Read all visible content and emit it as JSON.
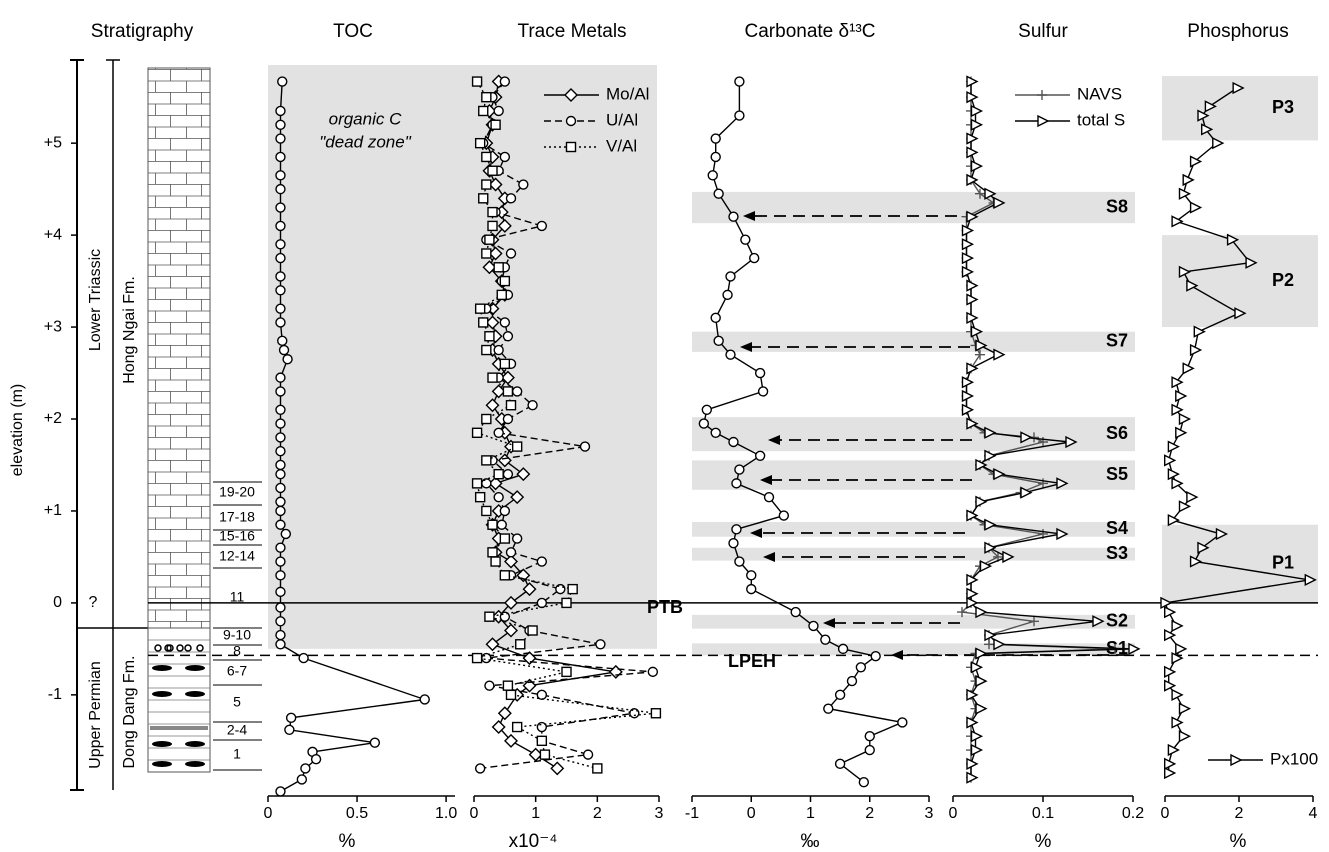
{
  "stratigraphy": {
    "title": "Stratigraphy",
    "axis_label": "elevation (m)",
    "ylim": [
      -2.1,
      5.85
    ],
    "yticks": [
      {
        "value": 5,
        "label": "+5"
      },
      {
        "value": 4,
        "label": "+4"
      },
      {
        "value": 3,
        "label": "+3"
      },
      {
        "value": 2,
        "label": "+2"
      },
      {
        "value": 1,
        "label": "+1"
      },
      0,
      -1
    ],
    "uncertain_label": "?",
    "systems": [
      "Lower Triassic",
      "Upper Permian"
    ],
    "formations": [
      "Hong Ngai Fm.",
      "Dong Dang Fm."
    ],
    "beds": [
      "19-20",
      "17-18",
      "15-16",
      "12-14",
      "11",
      "9-10",
      "8",
      "6-7",
      "5",
      "2-4",
      "1"
    ]
  },
  "boundaries": [
    {
      "label": "PTB",
      "elevation": 0
    },
    {
      "label": "LPEH",
      "elevation": -0.57
    }
  ],
  "chart_data": [
    {
      "type": "line",
      "title": "TOC",
      "unit": "%",
      "xlim": [
        0,
        1.05
      ],
      "xticks": [
        0,
        0.5,
        {
          "value": 1,
          "label": "1.0"
        }
      ],
      "annotation": [
        "organic C",
        "\"dead zone\""
      ],
      "bands": [
        {
          "from": -0.5,
          "to": 5.85
        }
      ],
      "elevation": [
        5.67,
        5.35,
        5.2,
        5.05,
        4.85,
        4.65,
        4.5,
        4.3,
        4.1,
        3.9,
        3.75,
        3.55,
        3.4,
        3.2,
        3.05,
        2.85,
        2.75,
        2.65,
        2.45,
        2.3,
        2.1,
        1.95,
        1.8,
        1.65,
        1.5,
        1.4,
        1.25,
        1.1,
        1.0,
        0.85,
        0.75,
        0.6,
        0.45,
        0.3,
        0.12,
        -0.05,
        -0.2,
        -0.35,
        -0.45,
        -0.6,
        -1.05,
        -1.25,
        -1.38,
        -1.52,
        -1.62,
        -1.7,
        -1.8,
        -1.92,
        -2.05
      ],
      "series": [
        {
          "color": "#000000",
          "marker": "circle",
          "dash": "solid",
          "values": [
            0.08,
            0.07,
            0.07,
            0.07,
            0.07,
            0.07,
            0.07,
            0.07,
            0.07,
            0.07,
            0.07,
            0.07,
            0.07,
            0.07,
            0.07,
            0.08,
            0.09,
            0.11,
            0.07,
            0.07,
            0.07,
            0.07,
            0.07,
            0.07,
            0.07,
            0.07,
            0.07,
            0.07,
            0.07,
            0.07,
            0.1,
            0.07,
            0.07,
            0.07,
            0.07,
            0.07,
            0.07,
            0.07,
            0.07,
            0.2,
            0.88,
            0.13,
            0.12,
            0.6,
            0.25,
            0.27,
            0.21,
            0.19,
            0.07
          ]
        }
      ]
    },
    {
      "type": "line",
      "title": "Trace Metals",
      "unit": "x10⁻⁴",
      "xlim": [
        0,
        3
      ],
      "xticks": [
        0,
        1,
        2,
        3
      ],
      "legend": "top-right",
      "elevation": [
        5.67,
        5.5,
        5.35,
        5.2,
        5.0,
        4.85,
        4.7,
        4.55,
        4.4,
        4.25,
        4.1,
        3.95,
        3.8,
        3.65,
        3.5,
        3.35,
        3.2,
        3.05,
        2.9,
        2.75,
        2.6,
        2.45,
        2.3,
        2.15,
        2.0,
        1.85,
        1.7,
        1.55,
        1.4,
        1.3,
        1.15,
        1.0,
        0.85,
        0.7,
        0.55,
        0.45,
        0.3,
        0.15,
        0.0,
        -0.15,
        -0.3,
        -0.45,
        -0.6,
        -0.75,
        -0.9,
        -1.0,
        -1.2,
        -1.35,
        -1.5,
        -1.65,
        -1.8
      ],
      "series": [
        {
          "name": "Mo/Al",
          "color": "#000000",
          "marker": "diamond",
          "dash": "solid",
          "values": [
            0.4,
            0.35,
            0.25,
            0.3,
            0.2,
            0.3,
            0.25,
            0.35,
            0.5,
            0.45,
            0.5,
            0.3,
            0.35,
            0.25,
            0.45,
            0.5,
            0.3,
            0.3,
            0.35,
            0.3,
            0.4,
            0.55,
            0.4,
            0.3,
            0.45,
            0.5,
            0.6,
            0.5,
            0.8,
            0.35,
            0.7,
            0.4,
            0.3,
            0.4,
            0.35,
            0.6,
            0.8,
            0.9,
            0.6,
            0.4,
            0.6,
            0.3,
            0.9,
            2.3,
            0.9,
            0.7,
            0.5,
            0.4,
            0.6,
            1.0,
            1.35
          ]
        },
        {
          "name": "U/Al",
          "color": "#000000",
          "marker": "circle",
          "dash": "dashed",
          "values": [
            0.5,
            0.3,
            0.4,
            0.3,
            0.15,
            0.5,
            0.4,
            0.8,
            0.6,
            0.35,
            1.1,
            0.2,
            0.6,
            0.5,
            0.45,
            0.55,
            0.2,
            0.5,
            0.55,
            0.4,
            0.6,
            0.4,
            0.7,
            0.95,
            0.55,
            0.4,
            1.8,
            0.3,
            0.55,
            0.2,
            0.4,
            0.5,
            0.45,
            0.7,
            0.6,
            1.1,
            0.6,
            1.4,
            1.1,
            0.5,
            0.9,
            2.05,
            0.2,
            2.9,
            0.25,
            1.1,
            2.6,
            1.1,
            1.1,
            1.85,
            0.1
          ]
        },
        {
          "name": "V/Al",
          "color": "#000000",
          "marker": "square",
          "dash": "dotted",
          "values": [
            0.05,
            0.2,
            0.15,
            0.35,
            0.1,
            0.2,
            0.3,
            0.2,
            0.15,
            0.3,
            0.3,
            0.25,
            0.2,
            0.4,
            0.5,
            0.45,
            0.1,
            0.15,
            0.25,
            0.2,
            0.5,
            0.3,
            0.55,
            0.6,
            0.2,
            0.05,
            0.7,
            0.2,
            0.4,
            0.05,
            0.1,
            0.2,
            0.3,
            0.5,
            0.3,
            0.35,
            0.5,
            1.6,
            1.5,
            0.25,
            0.95,
            0.75,
            0.05,
            1.5,
            0.55,
            0.6,
            2.95,
            0.7,
            1.1,
            1.15,
            2.0
          ]
        }
      ]
    },
    {
      "type": "line",
      "title": "Carbonate δ¹³C",
      "unit": "‰",
      "xlim": [
        -1,
        3
      ],
      "xticks": [
        -1,
        0,
        1,
        2,
        3
      ],
      "elevation": [
        5.67,
        5.3,
        5.05,
        4.85,
        4.65,
        4.45,
        4.2,
        3.95,
        3.75,
        3.55,
        3.35,
        3.1,
        2.85,
        2.7,
        2.5,
        2.3,
        2.1,
        1.95,
        1.85,
        1.75,
        1.6,
        1.45,
        1.3,
        1.15,
        0.95,
        0.8,
        0.65,
        0.45,
        0.3,
        0.15,
        -0.1,
        -0.25,
        -0.4,
        -0.5,
        -0.58,
        -0.7,
        -0.85,
        -1.0,
        -1.15,
        -1.3,
        -1.45,
        -1.6,
        -1.75,
        -1.95
      ],
      "series": [
        {
          "color": "#000000",
          "marker": "circle",
          "dash": "solid",
          "values": [
            -0.2,
            -0.2,
            -0.6,
            -0.6,
            -0.65,
            -0.55,
            -0.3,
            -0.1,
            0.05,
            -0.35,
            -0.4,
            -0.6,
            -0.55,
            -0.35,
            0.15,
            0.2,
            -0.75,
            -0.8,
            -0.6,
            -0.3,
            0.15,
            -0.2,
            -0.25,
            0.3,
            0.55,
            -0.25,
            -0.3,
            -0.2,
            0.0,
            0.0,
            0.75,
            1.05,
            1.25,
            1.55,
            2.1,
            1.85,
            1.7,
            1.5,
            1.3,
            2.55,
            2.0,
            2.0,
            1.5,
            1.9
          ]
        }
      ]
    },
    {
      "type": "line",
      "title": "Sulfur",
      "unit": "%",
      "xlim": [
        0,
        0.2
      ],
      "xticks": [
        0,
        0.1,
        0.2
      ],
      "legend": "top-left",
      "bands": [
        {
          "label": "S8",
          "from": 4.13,
          "to": 4.47
        },
        {
          "label": "S7",
          "from": 2.73,
          "to": 2.95
        },
        {
          "label": "S6",
          "from": 1.65,
          "to": 2.02
        },
        {
          "label": "S5",
          "from": 1.23,
          "to": 1.55
        },
        {
          "label": "S4",
          "from": 0.72,
          "to": 0.88
        },
        {
          "label": "S3",
          "from": 0.46,
          "to": 0.6
        },
        {
          "label": "S2",
          "from": -0.28,
          "to": -0.13
        },
        {
          "label": "S1",
          "from": -0.57,
          "to": -0.44
        }
      ],
      "elevation": [
        5.67,
        5.5,
        5.35,
        5.2,
        5.05,
        4.9,
        4.75,
        4.6,
        4.45,
        4.35,
        4.2,
        4.05,
        3.9,
        3.75,
        3.6,
        3.45,
        3.3,
        3.1,
        2.95,
        2.8,
        2.7,
        2.55,
        2.4,
        2.25,
        2.1,
        1.95,
        1.85,
        1.8,
        1.75,
        1.6,
        1.5,
        1.4,
        1.3,
        1.2,
        1.1,
        0.95,
        0.85,
        0.75,
        0.6,
        0.5,
        0.4,
        0.25,
        0.1,
        0.0,
        -0.1,
        -0.2,
        -0.35,
        -0.45,
        -0.5,
        -0.55,
        -0.7,
        -0.85,
        -1.0,
        -1.15,
        -1.3,
        -1.45,
        -1.6,
        -1.75,
        -1.9
      ],
      "series": [
        {
          "name": "NAVS",
          "color": "#555555",
          "marker": "plus",
          "dash": "solid",
          "values": [
            0.02,
            0.02,
            0.02,
            0.02,
            0.02,
            0.02,
            0.02,
            0.02,
            0.03,
            0.045,
            0.015,
            0.015,
            0.015,
            0.015,
            0.015,
            0.02,
            0.02,
            0.02,
            0.02,
            0.025,
            0.03,
            0.02,
            0.015,
            0.015,
            0.015,
            0.02,
            0.035,
            0.09,
            0.1,
            0.04,
            0.03,
            0.045,
            0.1,
            0.075,
            0.03,
            0.02,
            0.035,
            0.1,
            0.04,
            0.05,
            0.03,
            0.02,
            0.02,
            0.02,
            0.01,
            0.09,
            0.04,
            0.04,
            0.18,
            0.025,
            0.02,
            0.025,
            0.02,
            0.025,
            0.02,
            0.02,
            0.02,
            0.02,
            0.02
          ]
        },
        {
          "name": "total S",
          "color": "#000000",
          "marker": "triangle",
          "dash": "solid",
          "values": [
            0.02,
            0.02,
            0.025,
            0.025,
            0.02,
            0.02,
            0.025,
            0.02,
            0.04,
            0.05,
            0.02,
            0.015,
            0.015,
            0.015,
            0.015,
            0.02,
            0.02,
            0.02,
            0.025,
            0.03,
            0.05,
            0.02,
            0.015,
            0.015,
            0.015,
            0.02,
            0.04,
            0.08,
            0.13,
            0.04,
            0.03,
            0.05,
            0.12,
            0.08,
            0.03,
            0.02,
            0.04,
            0.12,
            0.04,
            0.06,
            0.035,
            0.02,
            0.02,
            0.02,
            0.03,
            0.16,
            0.04,
            0.05,
            0.2,
            0.03,
            0.025,
            0.03,
            0.02,
            0.03,
            0.02,
            0.025,
            0.025,
            0.02,
            0.02
          ]
        }
      ]
    },
    {
      "type": "line",
      "title": "Phosphorus",
      "unit": "%",
      "xlim": [
        0,
        4
      ],
      "xticks": [
        0,
        2,
        4
      ],
      "legend": "bottom-right",
      "bands": [
        {
          "label": "P3",
          "from": 5.03,
          "to": 5.73
        },
        {
          "label": "P2",
          "from": 3.0,
          "to": 4.0
        },
        {
          "label": "P1",
          "from": 0.0,
          "to": 0.85
        }
      ],
      "elevation": [
        5.6,
        5.4,
        5.3,
        5.15,
        5.0,
        4.8,
        4.6,
        4.45,
        4.3,
        4.15,
        3.95,
        3.7,
        3.6,
        3.45,
        3.15,
        2.95,
        2.75,
        2.55,
        2.4,
        2.25,
        2.1,
        2.0,
        1.85,
        1.7,
        1.55,
        1.4,
        1.3,
        1.15,
        1.05,
        0.9,
        0.75,
        0.6,
        0.45,
        0.25,
        0.0,
        -0.1,
        -0.25,
        -0.35,
        -0.5,
        -0.6,
        -0.75,
        -0.9,
        -1.0,
        -1.15,
        -1.3,
        -1.45,
        -1.6,
        -1.75,
        -1.85
      ],
      "series": [
        {
          "name": "Px100",
          "color": "#000000",
          "marker": "triangle",
          "dash": "solid",
          "values": [
            1.95,
            1.2,
            1.0,
            1.1,
            1.4,
            0.8,
            0.6,
            0.5,
            0.8,
            0.3,
            1.8,
            2.3,
            0.5,
            0.7,
            2.0,
            0.9,
            0.8,
            0.6,
            0.3,
            0.4,
            0.3,
            0.5,
            0.4,
            0.2,
            0.1,
            0.2,
            0.3,
            0.7,
            0.5,
            0.2,
            1.5,
            1.0,
            0.8,
            3.9,
            0.0,
            0.1,
            0.3,
            0.1,
            0.4,
            0.3,
            0.1,
            0.1,
            0.3,
            0.5,
            0.3,
            0.5,
            0.2,
            0.1,
            0.1
          ]
        }
      ]
    }
  ]
}
